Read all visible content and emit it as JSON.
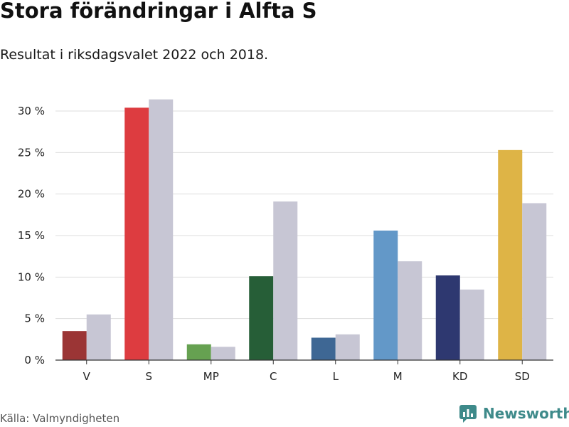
{
  "header": {
    "title": "Stora förändringar i Alfta S",
    "subtitle": "Resultat i riksdagsvalet 2022 och 2018."
  },
  "footer": {
    "source": "Källa: Valmyndigheten",
    "brand": "Newsworthy",
    "brand_icon": "bar-chart-logo-icon",
    "brand_color": "#3e8a8a"
  },
  "chart_data": {
    "type": "bar",
    "title": "Stora förändringar i Alfta S",
    "subtitle": "Resultat i riksdagsvalet 2022 och 2018.",
    "categories": [
      "V",
      "S",
      "MP",
      "C",
      "L",
      "M",
      "KD",
      "SD"
    ],
    "series": [
      {
        "values": [
          3.5,
          30.4,
          1.9,
          10.1,
          2.7,
          15.6,
          10.2,
          25.3
        ],
        "colors": [
          "#9b3535",
          "#dd3c40",
          "#66a151",
          "#265e37",
          "#3e6794",
          "#6398c8",
          "#2e3870",
          "#deb446"
        ]
      },
      {
        "values": [
          5.5,
          31.4,
          1.6,
          19.1,
          3.1,
          11.9,
          8.5,
          18.9
        ],
        "color": "#c7c6d4"
      }
    ],
    "ylim": [
      0,
      30
    ],
    "yticks": [
      0,
      5,
      10,
      15,
      20,
      25,
      30
    ],
    "ytick_labels": [
      "0 %",
      "5 %",
      "10 %",
      "15 %",
      "20 %",
      "25 %",
      "30 %"
    ],
    "grid": true,
    "legend": "none"
  }
}
